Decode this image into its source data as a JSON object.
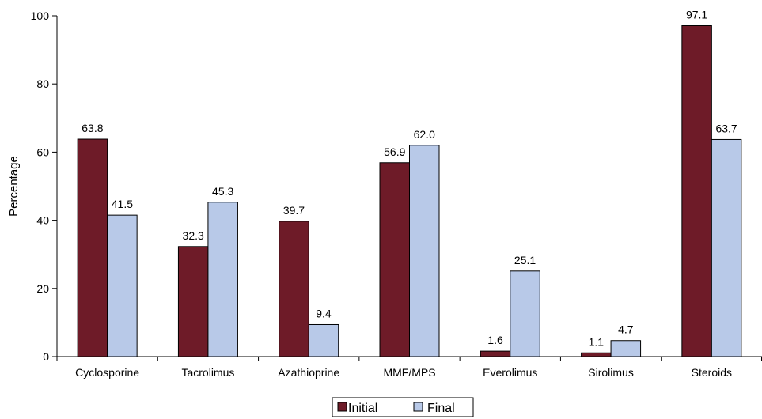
{
  "chart_data": {
    "type": "bar",
    "categories": [
      "Cyclosporine",
      "Tacrolimus",
      "Azathioprine",
      "MMF/MPS",
      "Everolimus",
      "Sirolimus",
      "Steroids"
    ],
    "series": [
      {
        "name": "Initial",
        "values": [
          63.8,
          32.3,
          39.7,
          56.9,
          1.6,
          1.1,
          97.1
        ],
        "labels": [
          "63.8",
          "32.3",
          "39.7",
          "56.9",
          "1.6",
          "1.1",
          "97.1"
        ],
        "color": "#6e1b28"
      },
      {
        "name": "Final",
        "values": [
          41.5,
          45.3,
          9.4,
          62.0,
          25.1,
          4.7,
          63.7
        ],
        "labels": [
          "41.5",
          "45.3",
          "9.4",
          "62.0",
          "25.1",
          "4.7",
          "63.7"
        ],
        "color": "#b8c9e8"
      }
    ],
    "ylabel": "Percentage",
    "xlabel": "",
    "ylim": [
      0,
      100
    ],
    "yticks": [
      "0",
      "20",
      "40",
      "60",
      "80",
      "100"
    ],
    "grid": false,
    "legend": "bottom"
  }
}
